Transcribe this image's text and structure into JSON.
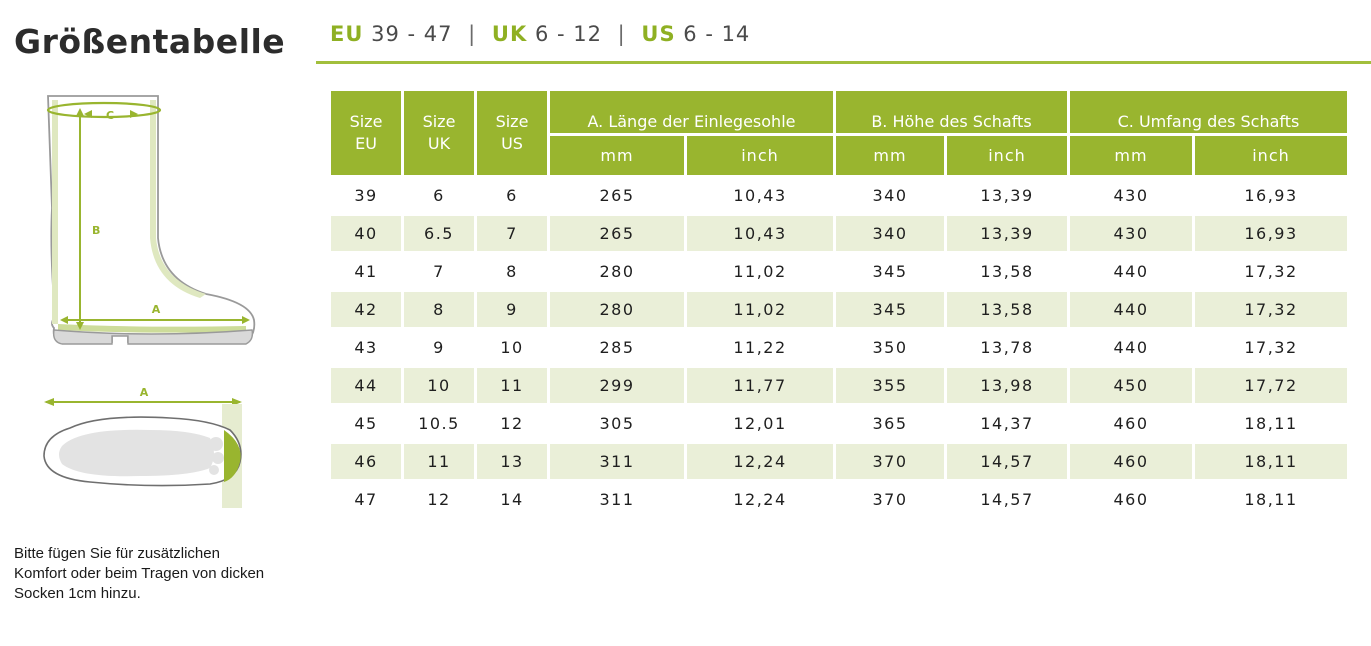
{
  "title": "Größentabelle",
  "size_ranges": [
    {
      "code": "EU",
      "range": "39 - 47"
    },
    {
      "code": "UK",
      "range": "6 - 12"
    },
    {
      "code": "US",
      "range": "6 - 14"
    }
  ],
  "size_separator": "|",
  "accent_color": "#99b52f",
  "row_shade_color": "#eaefd8",
  "diagram": {
    "labels": {
      "a": "A",
      "b": "B",
      "c": "C"
    },
    "icons": [
      "boot-side-view-icon",
      "boot-sole-view-icon"
    ]
  },
  "note": "Bitte fügen Sie für zusätzlichen Komfort oder beim Tragen von dicken Socken 1cm hinzu.",
  "table": {
    "size_header_top": "Size",
    "size_cols": [
      "EU",
      "UK",
      "US"
    ],
    "groups": [
      "A. Länge der Einlegesohle",
      "B. Höhe des Schafts",
      "C. Umfang des Schafts"
    ],
    "unit_mm": "mm",
    "unit_inch": "inch",
    "rows": [
      [
        "39",
        "6",
        "6",
        "265",
        "10,43",
        "340",
        "13,39",
        "430",
        "16,93"
      ],
      [
        "40",
        "6.5",
        "7",
        "265",
        "10,43",
        "340",
        "13,39",
        "430",
        "16,93"
      ],
      [
        "41",
        "7",
        "8",
        "280",
        "11,02",
        "345",
        "13,58",
        "440",
        "17,32"
      ],
      [
        "42",
        "8",
        "9",
        "280",
        "11,02",
        "345",
        "13,58",
        "440",
        "17,32"
      ],
      [
        "43",
        "9",
        "10",
        "285",
        "11,22",
        "350",
        "13,78",
        "440",
        "17,32"
      ],
      [
        "44",
        "10",
        "11",
        "299",
        "11,77",
        "355",
        "13,98",
        "450",
        "17,72"
      ],
      [
        "45",
        "10.5",
        "12",
        "305",
        "12,01",
        "365",
        "14,37",
        "460",
        "18,11"
      ],
      [
        "46",
        "11",
        "13",
        "311",
        "12,24",
        "370",
        "14,57",
        "460",
        "18,11"
      ],
      [
        "47",
        "12",
        "14",
        "311",
        "12,24",
        "370",
        "14,57",
        "460",
        "18,11"
      ]
    ]
  }
}
